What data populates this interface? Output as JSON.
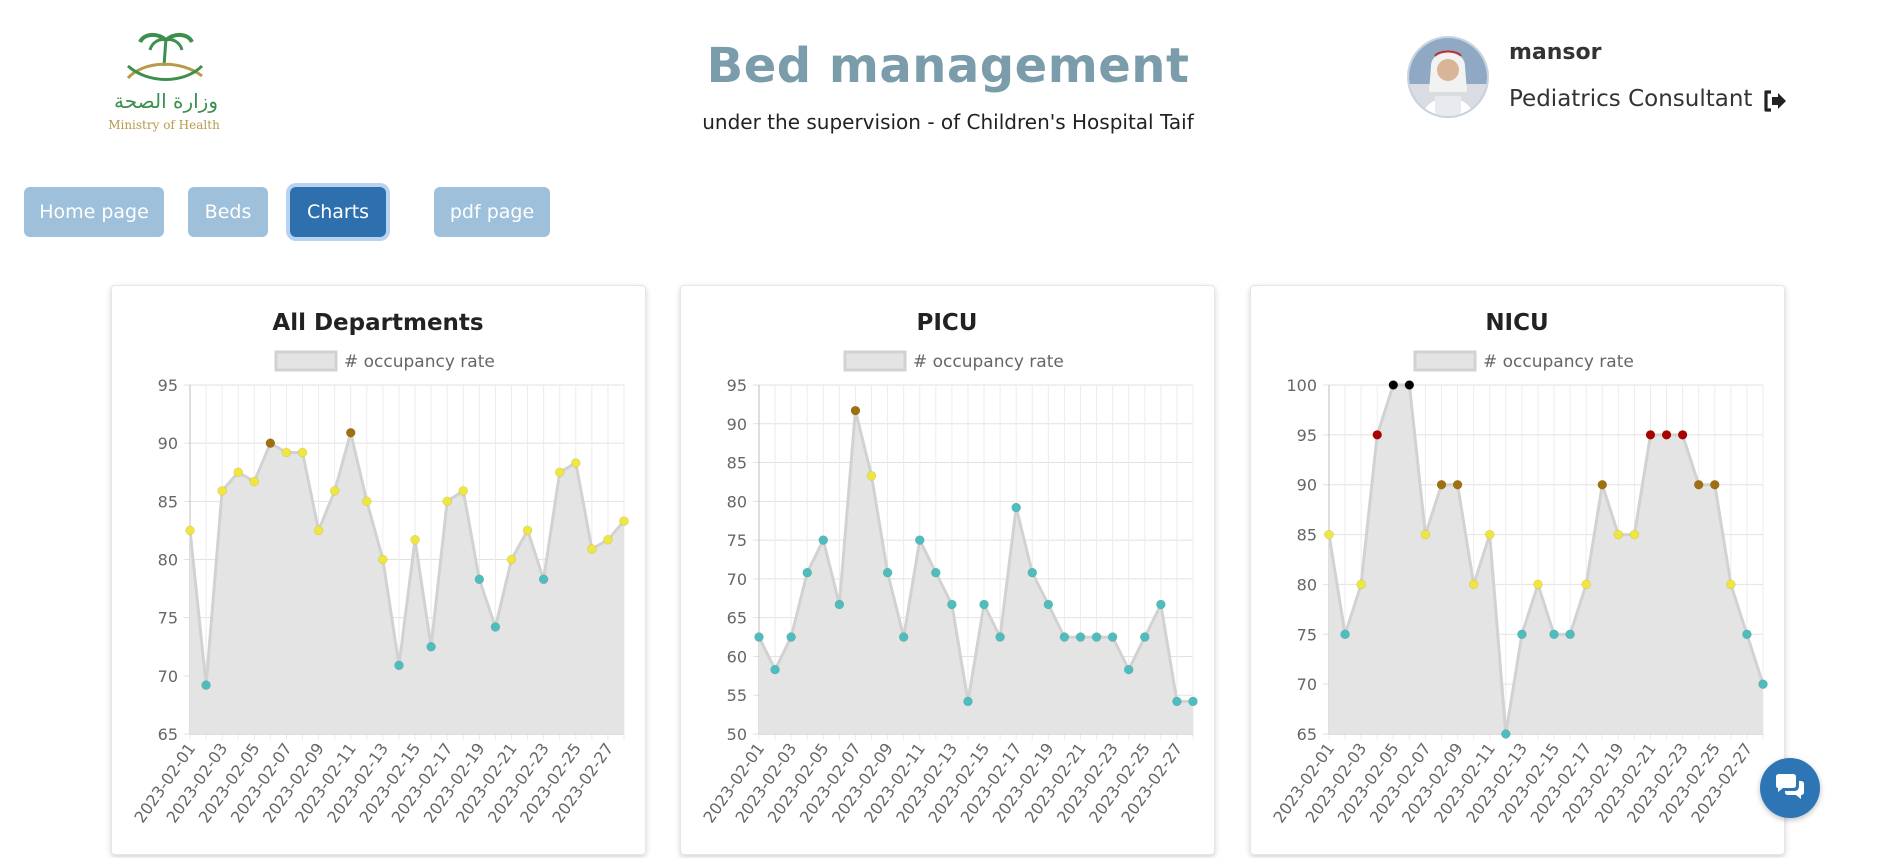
{
  "header": {
    "logo_arabic": "وزارة الصحة",
    "logo_english": "Ministry of Health",
    "title": "Bed management",
    "subtitle": "under the supervision - of Children's Hospital Taif"
  },
  "user": {
    "name": "mansor",
    "role": "Pediatrics Consultant",
    "logout_icon": "sign-out-icon"
  },
  "nav": {
    "home": "Home page",
    "beds": "Beds",
    "charts": "Charts",
    "pdf": "pdf page",
    "active": "charts"
  },
  "colors": {
    "title": "#7b9cab",
    "nav_inactive": "#9ec0da",
    "nav_active": "#2e6fad",
    "point_teal": "#4fbdbd",
    "point_yellow": "#f0e640",
    "point_brown": "#a07010",
    "point_red": "#aa0000",
    "point_black": "#000000",
    "area_fill": "#e4e4e4",
    "line": "#d2d2d2"
  },
  "chat": {
    "icon": "chat-bubbles-icon"
  },
  "chart_data": [
    {
      "type": "area",
      "title": "All Departments",
      "legend": "# occupancy rate",
      "legend_position": "top",
      "grid": true,
      "x": [
        "2023-02-01",
        "2023-02-02",
        "2023-02-03",
        "2023-02-04",
        "2023-02-05",
        "2023-02-06",
        "2023-02-07",
        "2023-02-08",
        "2023-02-09",
        "2023-02-10",
        "2023-02-11",
        "2023-02-12",
        "2023-02-13",
        "2023-02-14",
        "2023-02-15",
        "2023-02-16",
        "2023-02-17",
        "2023-02-18",
        "2023-02-19",
        "2023-02-20",
        "2023-02-21",
        "2023-02-22",
        "2023-02-23",
        "2023-02-24",
        "2023-02-25",
        "2023-02-26",
        "2023-02-27",
        "2023-02-28"
      ],
      "xticks": [
        "2023-02-01",
        "2023-02-03",
        "2023-02-05",
        "2023-02-07",
        "2023-02-09",
        "2023-02-11",
        "2023-02-13",
        "2023-02-15",
        "2023-02-17",
        "2023-02-19",
        "2023-02-21",
        "2023-02-23",
        "2023-02-25",
        "2023-02-27"
      ],
      "values": [
        82.5,
        69.2,
        85.9,
        87.5,
        86.7,
        90.0,
        89.2,
        89.2,
        82.5,
        85.9,
        90.9,
        85.0,
        80.0,
        70.9,
        81.7,
        72.5,
        85.0,
        85.9,
        78.3,
        74.2,
        80.0,
        82.5,
        78.3,
        87.5,
        88.3,
        80.9,
        81.7,
        83.3
      ],
      "ylim": [
        65,
        95
      ],
      "yticks": [
        65,
        70,
        75,
        80,
        85,
        90,
        95
      ]
    },
    {
      "type": "area",
      "title": "PICU",
      "legend": "# occupancy rate",
      "legend_position": "top",
      "grid": true,
      "x": [
        "2023-02-01",
        "2023-02-02",
        "2023-02-03",
        "2023-02-04",
        "2023-02-05",
        "2023-02-06",
        "2023-02-07",
        "2023-02-08",
        "2023-02-09",
        "2023-02-10",
        "2023-02-11",
        "2023-02-12",
        "2023-02-13",
        "2023-02-14",
        "2023-02-15",
        "2023-02-16",
        "2023-02-17",
        "2023-02-18",
        "2023-02-19",
        "2023-02-20",
        "2023-02-21",
        "2023-02-22",
        "2023-02-23",
        "2023-02-24",
        "2023-02-25",
        "2023-02-26",
        "2023-02-27",
        "2023-02-28"
      ],
      "xticks": [
        "2023-02-01",
        "2023-02-03",
        "2023-02-05",
        "2023-02-07",
        "2023-02-09",
        "2023-02-11",
        "2023-02-13",
        "2023-02-15",
        "2023-02-17",
        "2023-02-19",
        "2023-02-21",
        "2023-02-23",
        "2023-02-25",
        "2023-02-27"
      ],
      "values": [
        62.5,
        58.3,
        62.5,
        70.8,
        75.0,
        66.7,
        91.7,
        83.3,
        70.8,
        62.5,
        75.0,
        70.8,
        66.7,
        54.2,
        66.7,
        62.5,
        79.2,
        70.8,
        66.7,
        62.5,
        62.5,
        62.5,
        62.5,
        58.3,
        62.5,
        66.7,
        54.2,
        54.2
      ],
      "ylim": [
        50,
        95
      ],
      "yticks": [
        50,
        55,
        60,
        65,
        70,
        75,
        80,
        85,
        90,
        95
      ]
    },
    {
      "type": "area",
      "title": "NICU",
      "legend": "# occupancy rate",
      "legend_position": "top",
      "grid": true,
      "x": [
        "2023-02-01",
        "2023-02-02",
        "2023-02-03",
        "2023-02-04",
        "2023-02-05",
        "2023-02-06",
        "2023-02-07",
        "2023-02-08",
        "2023-02-09",
        "2023-02-10",
        "2023-02-11",
        "2023-02-12",
        "2023-02-13",
        "2023-02-14",
        "2023-02-15",
        "2023-02-16",
        "2023-02-17",
        "2023-02-18",
        "2023-02-19",
        "2023-02-20",
        "2023-02-21",
        "2023-02-22",
        "2023-02-23",
        "2023-02-24",
        "2023-02-25",
        "2023-02-26",
        "2023-02-27",
        "2023-02-28"
      ],
      "xticks": [
        "2023-02-01",
        "2023-02-03",
        "2023-02-05",
        "2023-02-07",
        "2023-02-09",
        "2023-02-11",
        "2023-02-13",
        "2023-02-15",
        "2023-02-17",
        "2023-02-19",
        "2023-02-21",
        "2023-02-23",
        "2023-02-25",
        "2023-02-27"
      ],
      "values": [
        85,
        75,
        80,
        95,
        100,
        100,
        85,
        90,
        90,
        80,
        85,
        65,
        75,
        80,
        75,
        75,
        80,
        90,
        85,
        85,
        95,
        95,
        95,
        90,
        90,
        80,
        75,
        70
      ],
      "ylim": [
        65,
        100
      ],
      "yticks": [
        65,
        70,
        75,
        80,
        85,
        90,
        95,
        100
      ]
    }
  ]
}
